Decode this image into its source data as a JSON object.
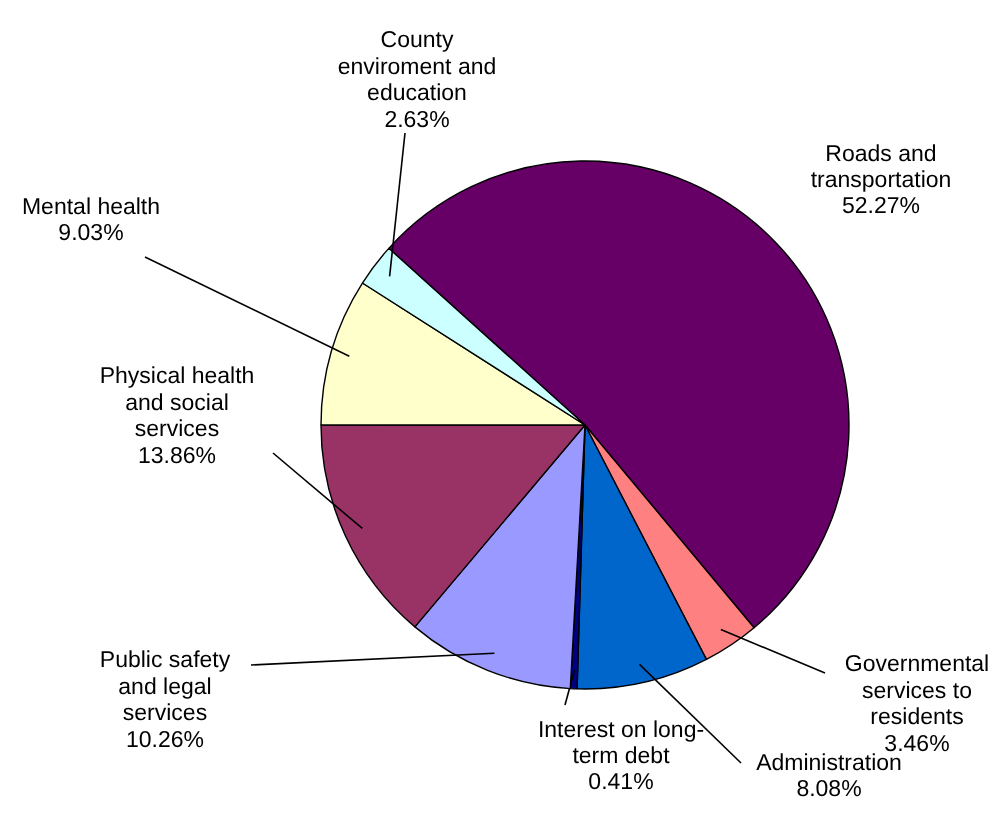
{
  "chart_data": {
    "type": "pie",
    "categories": [
      "Roads and transportation",
      "Governmental services to residents",
      "Administration",
      "Interest on long-term debt",
      "Public safety and legal services",
      "Physical health and social services",
      "Mental health",
      "County enviroment and education"
    ],
    "values": [
      52.27,
      3.46,
      8.08,
      0.41,
      10.26,
      13.86,
      9.03,
      2.63
    ],
    "colors": [
      "#660066",
      "#ff8080",
      "#0066cc",
      "#000080",
      "#9999ff",
      "#993366",
      "#ffffcc",
      "#ccffff"
    ],
    "value_labels": [
      "52.27%",
      "3.46%",
      "8.08%",
      "0.41%",
      "10.26%",
      "13.86%",
      "9.03%",
      "2.63%"
    ]
  }
}
